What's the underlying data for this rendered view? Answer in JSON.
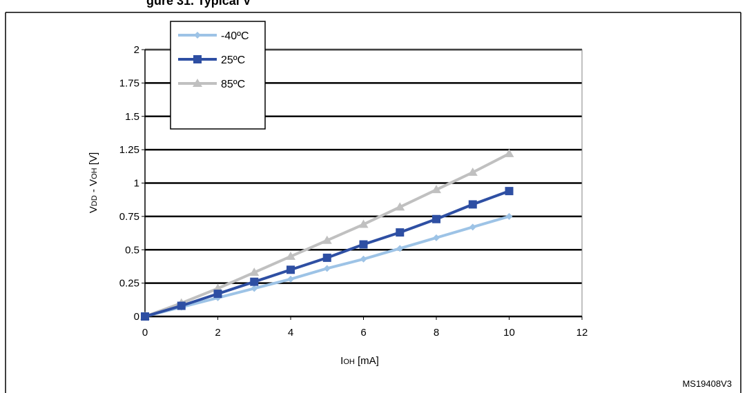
{
  "header": {
    "title_fragment": "gure 31. Typical V"
  },
  "chart_data": {
    "type": "line",
    "title": "",
    "xlabel": {
      "main": "I",
      "sub": "OH",
      "rest": " [mA]"
    },
    "ylabel": {
      "main1": "V",
      "sub1": "DD",
      "mid": " - V",
      "sub2": "OH",
      "rest": " [V]"
    },
    "xlim": [
      0,
      12
    ],
    "ylim": [
      0,
      2
    ],
    "xticks": [
      "0",
      "2",
      "4",
      "6",
      "8",
      "10",
      "12"
    ],
    "yticks": [
      "0",
      "0.25",
      "0.5",
      "0.75",
      "1",
      "1.25",
      "1.5",
      "1.75",
      "2"
    ],
    "x": [
      0,
      1,
      2,
      3,
      4,
      5,
      6,
      7,
      8,
      9,
      10
    ],
    "grid": true,
    "legend_position": "top-left",
    "series": [
      {
        "name": "-40ºC",
        "color": "#9DC3E6",
        "marker": "diamond",
        "x": [
          0,
          1,
          2,
          3,
          4,
          5,
          6,
          7,
          8,
          9,
          10
        ],
        "values": [
          0,
          0.07,
          0.14,
          0.21,
          0.28,
          0.36,
          0.43,
          0.51,
          0.59,
          0.67,
          0.75
        ]
      },
      {
        "name": "25ºC",
        "color": "#2E4FA3",
        "marker": "square",
        "x": [
          0,
          1,
          2,
          3,
          4,
          5,
          6,
          7,
          8,
          9,
          10
        ],
        "values": [
          0,
          0.08,
          0.17,
          0.26,
          0.35,
          0.44,
          0.54,
          0.63,
          0.73,
          0.84,
          0.94
        ]
      },
      {
        "name": "85ºC",
        "color": "#C0C0C0",
        "marker": "triangle",
        "x": [
          0,
          1,
          2,
          3,
          4,
          5,
          6,
          7,
          8,
          9,
          10
        ],
        "values": [
          0,
          0.1,
          0.21,
          0.33,
          0.45,
          0.57,
          0.69,
          0.82,
          0.95,
          1.08,
          1.22
        ]
      }
    ]
  },
  "footer": {
    "code": "MS19408V3"
  }
}
